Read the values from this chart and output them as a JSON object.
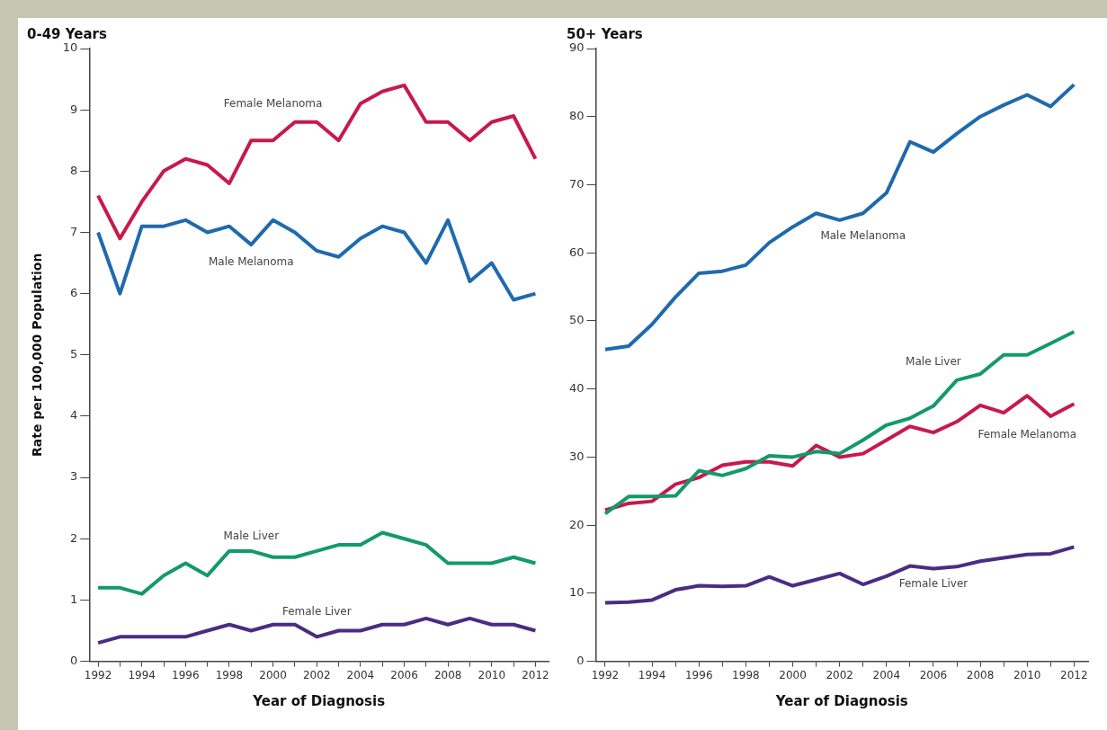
{
  "chart_data": [
    {
      "type": "line",
      "title": "0-49 Years",
      "xlabel": "Year of Diagnosis",
      "ylabel": "Rate per 100,000 Population",
      "x": [
        1992,
        1993,
        1994,
        1995,
        1996,
        1997,
        1998,
        1999,
        2000,
        2001,
        2002,
        2003,
        2004,
        2005,
        2006,
        2007,
        2008,
        2009,
        2010,
        2011,
        2012
      ],
      "xlim": [
        1991.6,
        2012.6
      ],
      "xticks": [
        1992,
        {
          "value": 1993,
          "label": null
        },
        1994,
        {
          "value": 1995,
          "label": null
        },
        1996,
        {
          "value": 1997,
          "label": null
        },
        1998,
        {
          "value": 1999,
          "label": null
        },
        2000,
        {
          "value": 2001,
          "label": null
        },
        2002,
        {
          "value": 2003,
          "label": null
        },
        2004,
        {
          "value": 2005,
          "label": null
        },
        2006,
        {
          "value": 2007,
          "label": null
        },
        2008,
        {
          "value": 2009,
          "label": null
        },
        2010,
        {
          "value": 2011,
          "label": null
        },
        2012
      ],
      "ylim": [
        0,
        10
      ],
      "yticks": [
        0,
        1,
        2,
        3,
        4,
        5,
        6,
        7,
        8,
        9,
        10
      ],
      "legend": false,
      "grid": false,
      "marker": "none",
      "series": [
        {
          "name": "Female Melanoma",
          "color": "#c8194b",
          "values": [
            7.6,
            6.9,
            7.5,
            8.0,
            8.2,
            8.1,
            7.8,
            8.5,
            8.5,
            8.8,
            8.8,
            8.5,
            9.1,
            9.3,
            9.4,
            8.8,
            8.8,
            8.5,
            8.8,
            8.9,
            8.2
          ]
        },
        {
          "name": "Male Melanoma",
          "color": "#1f6aad",
          "values": [
            7.0,
            6.0,
            7.1,
            7.1,
            7.2,
            7.0,
            7.1,
            6.8,
            7.2,
            7.0,
            6.7,
            6.6,
            6.9,
            7.1,
            7.0,
            6.5,
            7.2,
            6.2,
            6.5,
            5.9,
            6.0
          ]
        },
        {
          "name": "Male Liver",
          "color": "#139a6a",
          "values": [
            1.2,
            1.2,
            1.1,
            1.4,
            1.6,
            1.4,
            1.8,
            1.8,
            1.7,
            1.7,
            1.8,
            1.9,
            1.9,
            2.1,
            2.0,
            1.9,
            1.6,
            1.6,
            1.6,
            1.7,
            1.6
          ]
        },
        {
          "name": "Female Liver",
          "color": "#4b2c82",
          "values": [
            0.3,
            0.4,
            0.4,
            0.4,
            0.4,
            0.5,
            0.6,
            0.5,
            0.6,
            0.6,
            0.4,
            0.5,
            0.5,
            0.6,
            0.6,
            0.7,
            0.6,
            0.7,
            0.6,
            0.6,
            0.5
          ]
        }
      ]
    },
    {
      "type": "line",
      "title": "50+ Years",
      "xlabel": "Year of Diagnosis",
      "x": [
        1992,
        1993,
        1994,
        1995,
        1996,
        1997,
        1998,
        1999,
        2000,
        2001,
        2002,
        2003,
        2004,
        2005,
        2006,
        2007,
        2008,
        2009,
        2010,
        2011,
        2012
      ],
      "xlim": [
        1991.6,
        2012.6
      ],
      "xticks": [
        1992,
        {
          "value": 1993,
          "label": null
        },
        1994,
        {
          "value": 1995,
          "label": null
        },
        1996,
        {
          "value": 1997,
          "label": null
        },
        1998,
        {
          "value": 1999,
          "label": null
        },
        2000,
        {
          "value": 2001,
          "label": null
        },
        2002,
        {
          "value": 2003,
          "label": null
        },
        2004,
        {
          "value": 2005,
          "label": null
        },
        2006,
        {
          "value": 2007,
          "label": null
        },
        2008,
        {
          "value": 2009,
          "label": null
        },
        2010,
        {
          "value": 2011,
          "label": null
        },
        2012
      ],
      "ylim": [
        0,
        90
      ],
      "yticks": [
        0,
        10,
        20,
        30,
        40,
        50,
        60,
        70,
        80,
        90
      ],
      "legend": false,
      "grid": false,
      "marker": "none",
      "series": [
        {
          "name": "Male Melanoma",
          "color": "#1f6aad",
          "values": [
            45.8,
            46.3,
            49.5,
            53.5,
            57,
            57.3,
            58.2,
            61.5,
            63.8,
            65.8,
            64.8,
            65.8,
            68.8,
            76.3,
            74.8,
            77.5,
            80,
            81.7,
            83.2,
            81.5,
            84.7
          ]
        },
        {
          "name": "Male Liver",
          "color": "#139a6a",
          "values": [
            21.7,
            24.2,
            24.2,
            24.3,
            28,
            27.3,
            28.3,
            30.2,
            30,
            30.8,
            30.5,
            32.5,
            34.7,
            35.7,
            37.5,
            41.3,
            42.2,
            45,
            45,
            46.7,
            48.4
          ]
        },
        {
          "name": "Female Melanoma",
          "color": "#c8194b",
          "values": [
            22.2,
            23.2,
            23.5,
            26,
            27,
            28.8,
            29.3,
            29.3,
            28.7,
            31.7,
            30,
            30.5,
            32.5,
            34.5,
            33.6,
            35.2,
            37.6,
            36.5,
            39,
            36,
            37.8
          ]
        },
        {
          "name": "Female Liver",
          "color": "#4b2c82",
          "values": [
            8.6,
            8.7,
            9,
            10.5,
            11.1,
            11,
            11.1,
            12.4,
            11.1,
            12,
            12.9,
            11.3,
            12.5,
            14,
            13.6,
            13.9,
            14.7,
            15.2,
            15.7,
            15.8,
            16.8
          ]
        }
      ]
    }
  ]
}
